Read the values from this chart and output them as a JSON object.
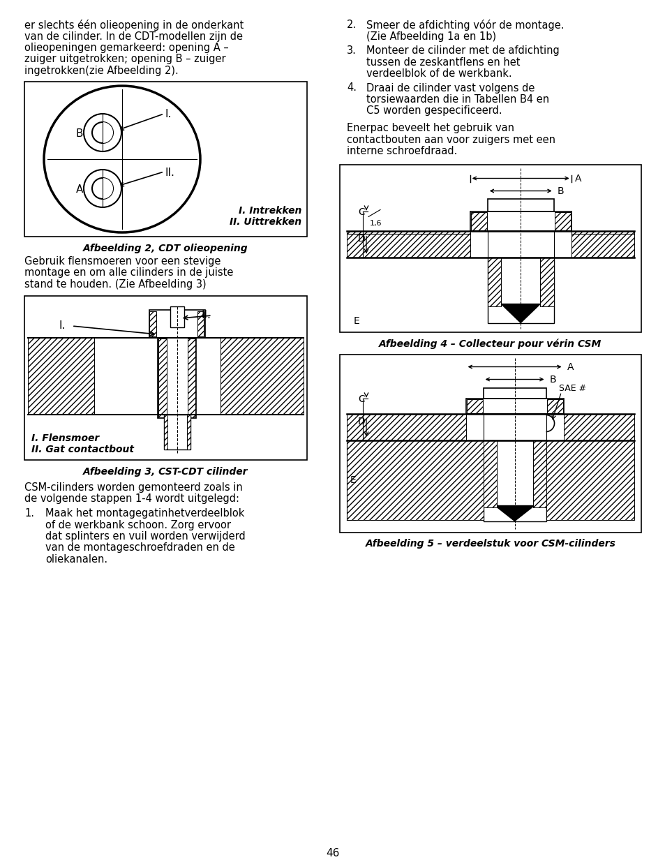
{
  "bg_color": "#ffffff",
  "text_color": "#000000",
  "page_number": "46",
  "fig2_caption": "Afbeelding 2, CDT olieopening",
  "fig3_caption": "Afbeelding 3, CST-CDT cilinder",
  "fig4_caption": "Afbeelding 4 – Collecteur pour vérin CSM",
  "fig5_caption": "Afbeelding 5 – verdeelstuk voor CSM-cilinders"
}
